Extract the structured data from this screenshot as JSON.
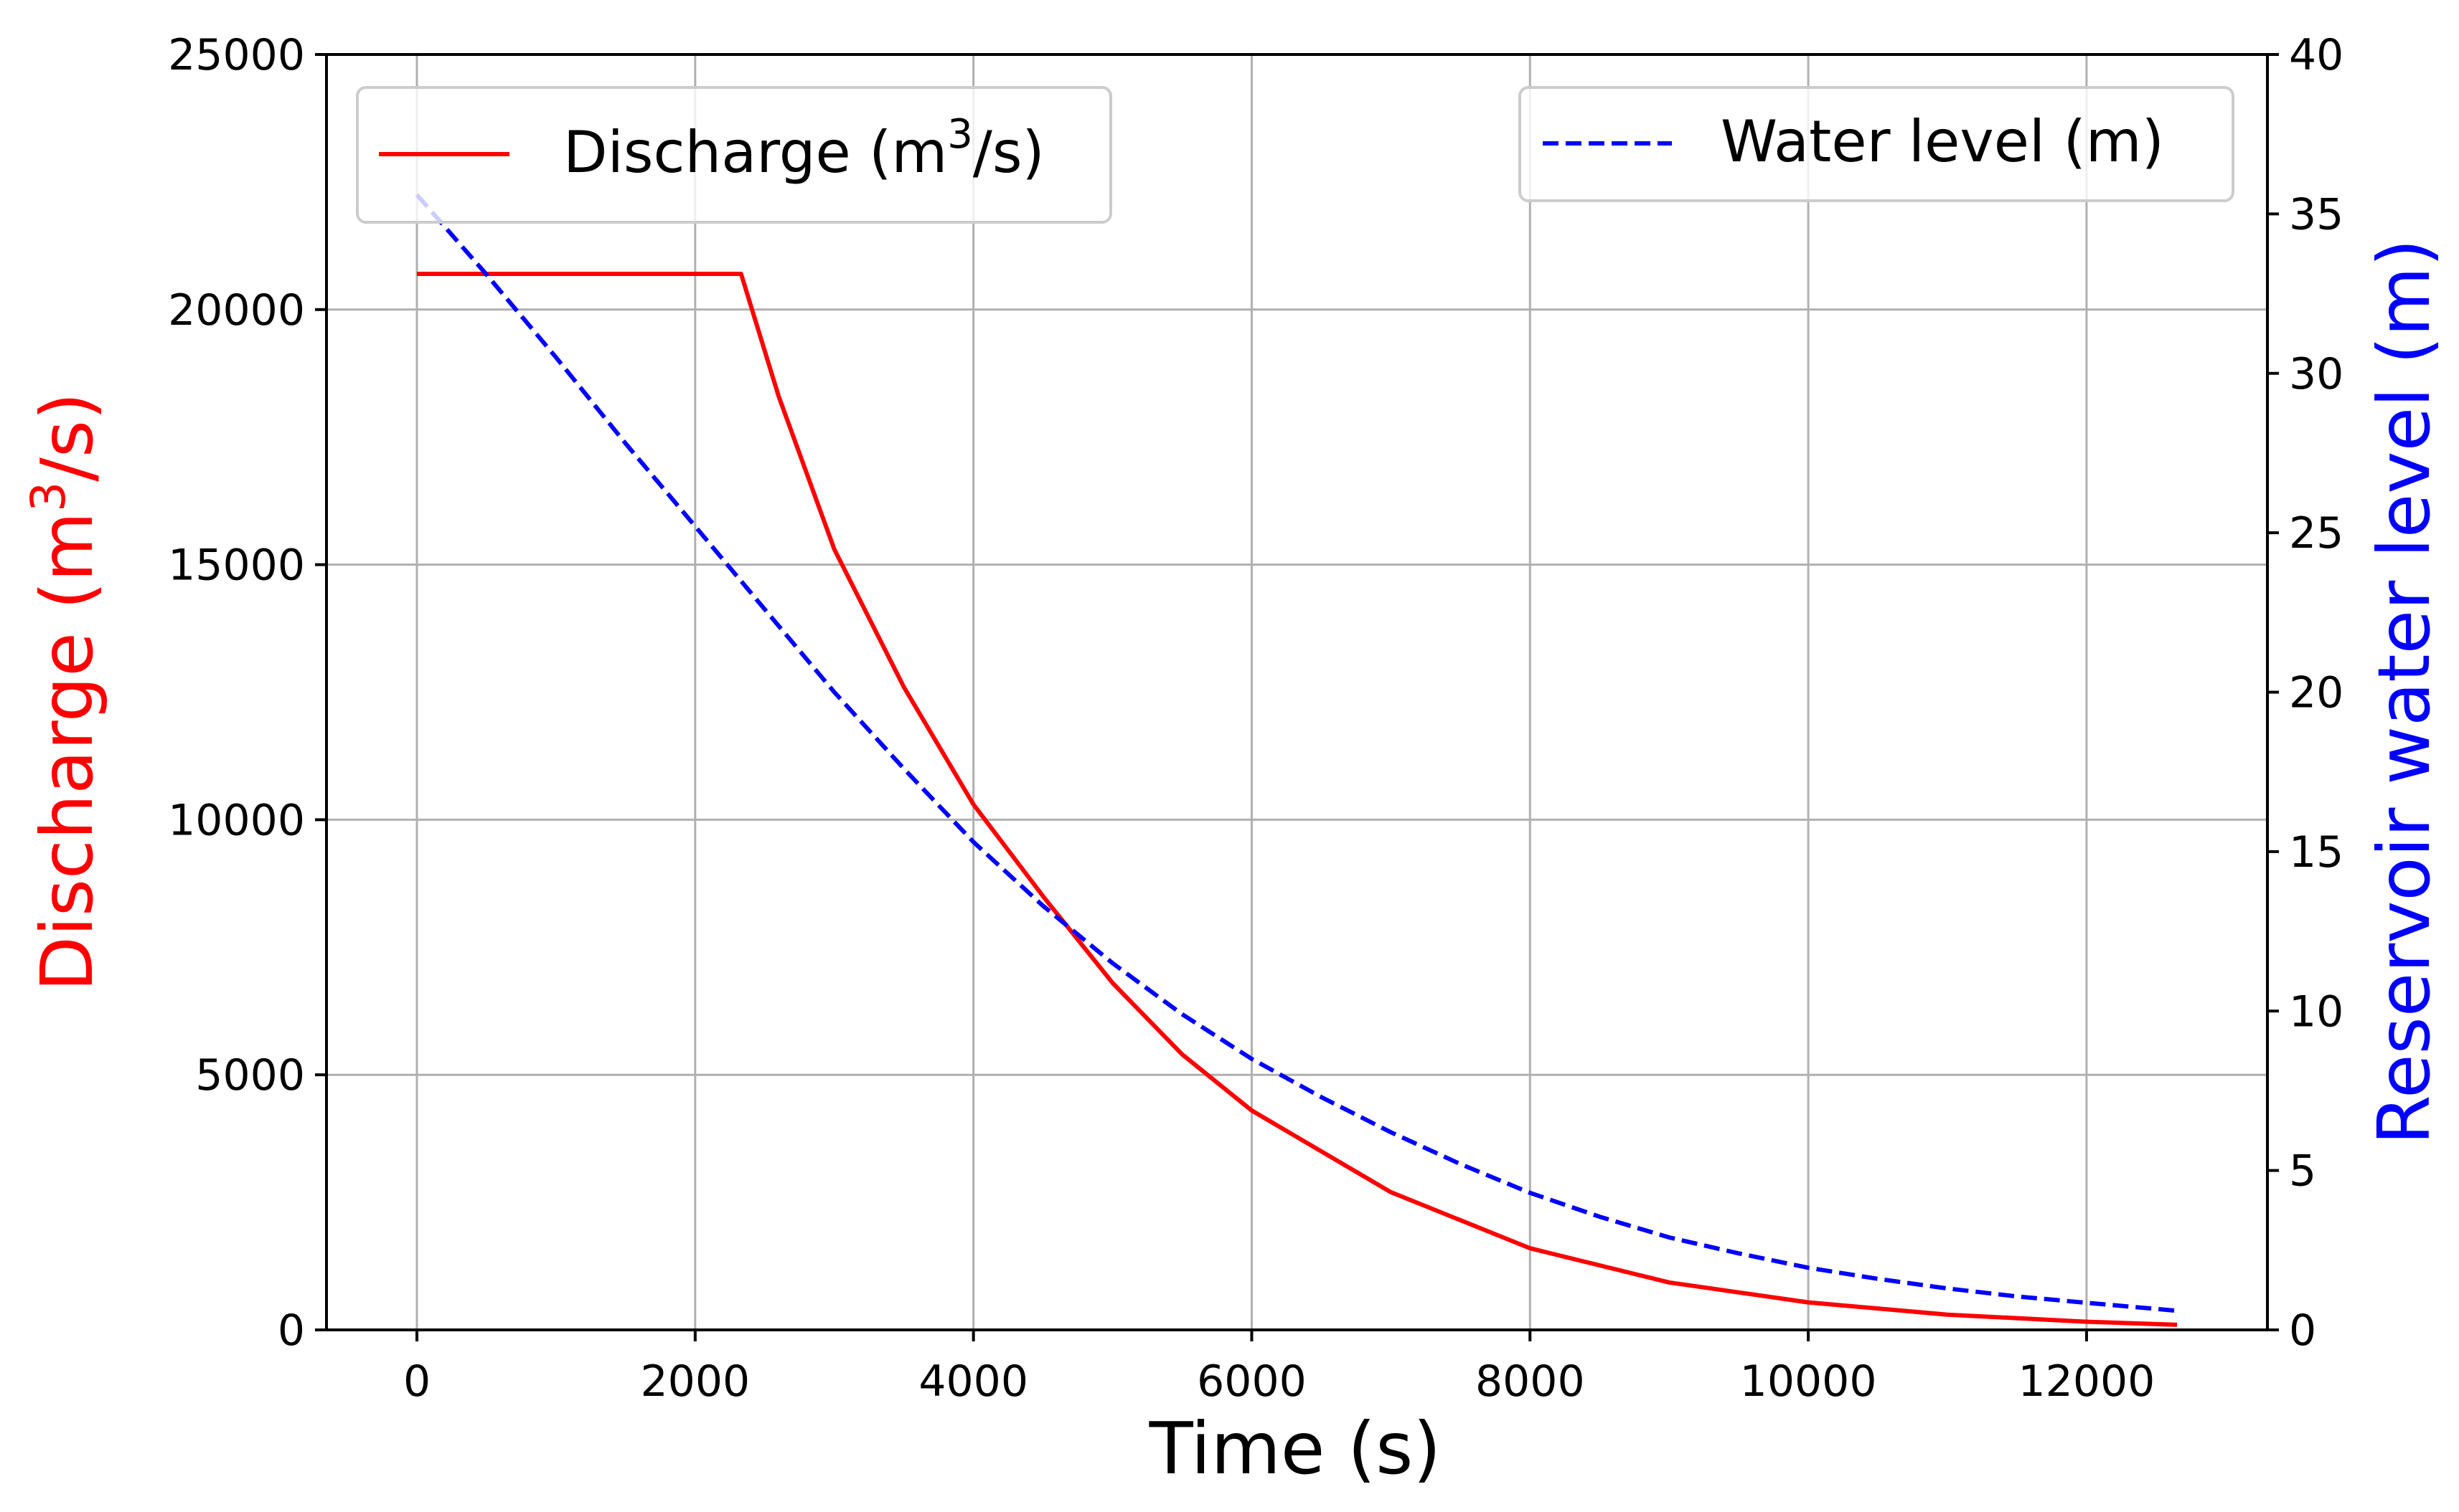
{
  "chart_data": {
    "type": "line",
    "xlabel": "Time (s)",
    "ylabel_left": {
      "text": "Discharge (m",
      "sup": "3",
      "suffix": "/s)"
    },
    "ylabel_right": "Reservoir water level (m)",
    "xlim": [
      -650,
      13300
    ],
    "ylim_left": [
      0,
      25000
    ],
    "ylim_right": [
      0,
      40
    ],
    "x_ticks": [
      0,
      2000,
      4000,
      6000,
      8000,
      10000,
      12000
    ],
    "y_ticks_left": [
      0,
      5000,
      10000,
      15000,
      20000,
      25000
    ],
    "y_ticks_right": [
      0,
      5,
      10,
      15,
      20,
      25,
      30,
      35,
      40
    ],
    "grid": true,
    "series": [
      {
        "name": "Discharge",
        "legend": {
          "text": "Discharge (m",
          "sup": "3",
          "suffix": "/s)"
        },
        "axis": "left",
        "color": "#ff0000",
        "style": "solid",
        "x": [
          0,
          2330,
          2600,
          3000,
          3500,
          4000,
          4500,
          5000,
          5500,
          6000,
          7000,
          8000,
          9000,
          10000,
          11000,
          12000,
          12650
        ],
        "y": [
          20700,
          20700,
          18300,
          15300,
          12600,
          10300,
          8500,
          6800,
          5400,
          4300,
          2700,
          1600,
          930,
          540,
          300,
          160,
          100
        ]
      },
      {
        "name": "Water level",
        "legend": {
          "text": "Water level (m)"
        },
        "axis": "right",
        "color": "#0000ff",
        "style": "dashed",
        "x": [
          0,
          500,
          1000,
          1500,
          2000,
          2500,
          3000,
          3500,
          4000,
          4500,
          5000,
          5500,
          6000,
          6500,
          7000,
          7500,
          8000,
          8500,
          9000,
          9500,
          10000,
          10500,
          11000,
          11500,
          12000,
          12650
        ],
        "y": [
          35.6,
          33.1,
          30.5,
          27.8,
          25.2,
          22.6,
          20.0,
          17.6,
          15.3,
          13.3,
          11.5,
          9.9,
          8.5,
          7.3,
          6.2,
          5.2,
          4.3,
          3.55,
          2.9,
          2.4,
          1.95,
          1.6,
          1.3,
          1.05,
          0.85,
          0.6
        ]
      }
    ]
  },
  "colors": {
    "discharge": "#ff0000",
    "water_level": "#0000ff",
    "grid": "#b0b0b0",
    "legend_border": "#cccccc"
  }
}
